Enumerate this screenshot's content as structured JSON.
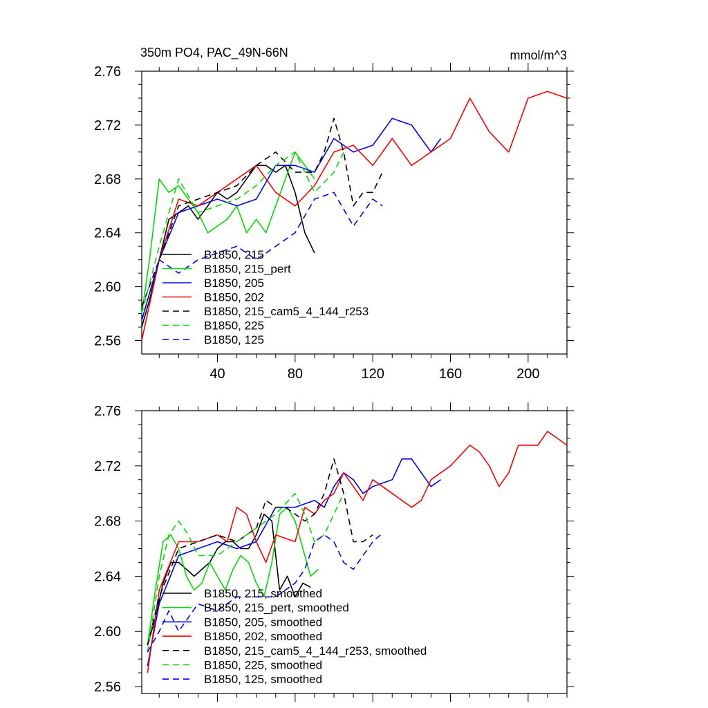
{
  "chart_data": [
    {
      "type": "line",
      "title": "350m PO4, PAC_49N-66N",
      "units": "mmol/m^3",
      "xlim": [
        1,
        220
      ],
      "ylim": [
        2.55,
        2.76
      ],
      "xticks": [
        40,
        80,
        120,
        160,
        200
      ],
      "yticks": [
        2.56,
        2.6,
        2.64,
        2.68,
        2.72,
        2.76
      ],
      "ytick_labels": [
        "2.56",
        "2.60",
        "2.64",
        "2.68",
        "2.72",
        "2.76"
      ],
      "show_xtick_labels": true,
      "legend_position": "bottom-left",
      "series": [
        {
          "name": "B1850, 215",
          "color": "#000000",
          "dash": "solid",
          "x": [
            1,
            5,
            10,
            15,
            20,
            25,
            30,
            35,
            40,
            45,
            50,
            55,
            60,
            65,
            70,
            75,
            80,
            85,
            90
          ],
          "y": [
            2.57,
            2.59,
            2.62,
            2.65,
            2.655,
            2.66,
            2.65,
            2.66,
            2.67,
            2.665,
            2.67,
            2.68,
            2.69,
            2.69,
            2.685,
            2.69,
            2.67,
            2.64,
            2.625
          ]
        },
        {
          "name": "B1850, 215_pert",
          "color": "#00dd00",
          "dash": "solid",
          "x": [
            1,
            5,
            10,
            15,
            20,
            25,
            30,
            35,
            40,
            45,
            50,
            55,
            60,
            65,
            70,
            75,
            80,
            85,
            90
          ],
          "y": [
            2.58,
            2.62,
            2.68,
            2.67,
            2.675,
            2.665,
            2.655,
            2.64,
            2.645,
            2.65,
            2.66,
            2.64,
            2.65,
            2.64,
            2.66,
            2.68,
            2.7,
            2.69,
            2.68
          ]
        },
        {
          "name": "B1850, 205",
          "color": "#0000ff",
          "dash": "solid",
          "x": [
            1,
            10,
            20,
            30,
            40,
            50,
            60,
            70,
            80,
            90,
            100,
            110,
            120,
            130,
            140,
            150,
            155
          ],
          "y": [
            2.575,
            2.62,
            2.655,
            2.66,
            2.665,
            2.66,
            2.665,
            2.69,
            2.69,
            2.685,
            2.71,
            2.7,
            2.705,
            2.725,
            2.72,
            2.7,
            2.71
          ]
        },
        {
          "name": "B1850, 202",
          "color": "#ff0000",
          "dash": "solid",
          "x": [
            1,
            10,
            20,
            30,
            40,
            50,
            60,
            70,
            80,
            90,
            100,
            110,
            120,
            130,
            140,
            150,
            160,
            170,
            180,
            190,
            200,
            210,
            220
          ],
          "y": [
            2.56,
            2.62,
            2.665,
            2.66,
            2.67,
            2.68,
            2.69,
            2.67,
            2.66,
            2.675,
            2.7,
            2.705,
            2.69,
            2.71,
            2.69,
            2.7,
            2.71,
            2.74,
            2.715,
            2.7,
            2.74,
            2.745,
            2.74
          ]
        },
        {
          "name": "B1850, 215_cam5_4_144_r253",
          "color": "#000000",
          "dash": "dashed",
          "x": [
            1,
            10,
            20,
            30,
            40,
            50,
            60,
            70,
            80,
            90,
            95,
            100,
            105,
            110,
            115,
            120,
            125
          ],
          "y": [
            2.585,
            2.62,
            2.66,
            2.665,
            2.67,
            2.675,
            2.69,
            2.7,
            2.685,
            2.685,
            2.7,
            2.725,
            2.7,
            2.66,
            2.67,
            2.67,
            2.685
          ]
        },
        {
          "name": "B1850, 225",
          "color": "#00dd00",
          "dash": "dashed",
          "x": [
            1,
            10,
            20,
            30,
            40,
            50,
            60,
            70,
            80,
            90,
            100,
            105
          ],
          "y": [
            2.58,
            2.63,
            2.68,
            2.655,
            2.66,
            2.665,
            2.675,
            2.69,
            2.7,
            2.67,
            2.685,
            2.7
          ]
        },
        {
          "name": "B1850, 125",
          "color": "#0000ff",
          "dash": "dashed",
          "x": [
            1,
            10,
            20,
            30,
            40,
            50,
            60,
            70,
            80,
            90,
            100,
            110,
            120,
            125
          ],
          "y": [
            2.575,
            2.62,
            2.61,
            2.62,
            2.625,
            2.63,
            2.62,
            2.63,
            2.64,
            2.665,
            2.67,
            2.645,
            2.665,
            2.66
          ]
        }
      ]
    },
    {
      "type": "line",
      "title": "",
      "units": "",
      "xlim": [
        1,
        220
      ],
      "ylim": [
        2.555,
        2.76
      ],
      "xticks": [
        40,
        80,
        120,
        160,
        200
      ],
      "yticks": [
        2.56,
        2.6,
        2.64,
        2.68,
        2.72,
        2.76
      ],
      "ytick_labels": [
        "2.56",
        "2.60",
        "2.64",
        "2.68",
        "2.72",
        "2.76"
      ],
      "show_xtick_labels": false,
      "legend_position": "bottom-left",
      "series": [
        {
          "name": "B1850, 215, smoothed",
          "color": "#000000",
          "dash": "solid",
          "x": [
            4,
            8,
            12,
            16,
            20,
            24,
            28,
            32,
            36,
            40,
            44,
            48,
            52,
            56,
            60,
            64,
            68,
            72,
            76,
            80,
            84,
            88
          ],
          "y": [
            2.59,
            2.61,
            2.635,
            2.65,
            2.65,
            2.645,
            2.64,
            2.645,
            2.65,
            2.66,
            2.665,
            2.665,
            2.66,
            2.66,
            2.67,
            2.685,
            2.68,
            2.63,
            2.64,
            2.625,
            2.635,
            2.632
          ]
        },
        {
          "name": "B1850, 215_pert, smoothed",
          "color": "#00dd00",
          "dash": "solid",
          "x": [
            4,
            8,
            12,
            16,
            20,
            24,
            28,
            32,
            36,
            40,
            44,
            48,
            52,
            56,
            60,
            64,
            68,
            72,
            76,
            80,
            84,
            88,
            92
          ],
          "y": [
            2.59,
            2.63,
            2.665,
            2.67,
            2.66,
            2.64,
            2.63,
            2.635,
            2.65,
            2.64,
            2.63,
            2.645,
            2.655,
            2.65,
            2.635,
            2.625,
            2.65,
            2.685,
            2.69,
            2.68,
            2.66,
            2.64,
            2.645
          ]
        },
        {
          "name": "B1850, 205, smoothed",
          "color": "#0000ff",
          "dash": "solid",
          "x": [
            4,
            10,
            20,
            30,
            40,
            50,
            60,
            70,
            80,
            90,
            95,
            100,
            105,
            110,
            115,
            120,
            130,
            135,
            140,
            145,
            150,
            155
          ],
          "y": [
            2.575,
            2.62,
            2.655,
            2.66,
            2.665,
            2.66,
            2.665,
            2.69,
            2.69,
            2.695,
            2.69,
            2.705,
            2.715,
            2.71,
            2.7,
            2.705,
            2.71,
            2.725,
            2.725,
            2.715,
            2.705,
            2.71
          ]
        },
        {
          "name": "B1850, 202, smoothed",
          "color": "#ff0000",
          "dash": "solid",
          "x": [
            4,
            10,
            20,
            30,
            40,
            45,
            50,
            55,
            60,
            65,
            70,
            80,
            85,
            90,
            95,
            100,
            105,
            110,
            115,
            120,
            125,
            130,
            140,
            145,
            150,
            160,
            170,
            175,
            180,
            185,
            190,
            195,
            200,
            205,
            210,
            215,
            220
          ],
          "y": [
            2.57,
            2.63,
            2.665,
            2.665,
            2.67,
            2.665,
            2.69,
            2.685,
            2.665,
            2.65,
            2.67,
            2.665,
            2.69,
            2.685,
            2.695,
            2.7,
            2.715,
            2.705,
            2.695,
            2.71,
            2.705,
            2.7,
            2.69,
            2.695,
            2.71,
            2.72,
            2.735,
            2.73,
            2.72,
            2.705,
            2.715,
            2.735,
            2.735,
            2.735,
            2.745,
            2.74,
            2.735
          ]
        },
        {
          "name": "B1850, 215_cam5_4_144_r253, smoothed",
          "color": "#000000",
          "dash": "dashed",
          "x": [
            4,
            10,
            20,
            30,
            40,
            50,
            60,
            65,
            70,
            75,
            80,
            85,
            90,
            95,
            100,
            105,
            110,
            115,
            120
          ],
          "y": [
            2.59,
            2.625,
            2.66,
            2.665,
            2.67,
            2.665,
            2.675,
            2.695,
            2.69,
            2.69,
            2.685,
            2.68,
            2.685,
            2.7,
            2.725,
            2.7,
            2.665,
            2.665,
            2.67
          ]
        },
        {
          "name": "B1850, 225, smoothed",
          "color": "#00dd00",
          "dash": "dashed",
          "x": [
            4,
            10,
            15,
            20,
            25,
            30,
            40,
            50,
            60,
            70,
            80,
            85,
            90,
            95,
            100,
            105
          ],
          "y": [
            2.585,
            2.64,
            2.67,
            2.68,
            2.67,
            2.655,
            2.655,
            2.665,
            2.675,
            2.685,
            2.7,
            2.685,
            2.665,
            2.67,
            2.685,
            2.7
          ]
        },
        {
          "name": "B1850, 125, smoothed",
          "color": "#0000ff",
          "dash": "dashed",
          "x": [
            4,
            10,
            15,
            20,
            25,
            30,
            40,
            50,
            60,
            70,
            80,
            85,
            90,
            95,
            100,
            105,
            110,
            115,
            120,
            124
          ],
          "y": [
            2.585,
            2.6,
            2.615,
            2.6,
            2.61,
            2.62,
            2.615,
            2.625,
            2.625,
            2.625,
            2.635,
            2.645,
            2.665,
            2.67,
            2.665,
            2.65,
            2.645,
            2.655,
            2.665,
            2.67
          ]
        }
      ]
    }
  ]
}
